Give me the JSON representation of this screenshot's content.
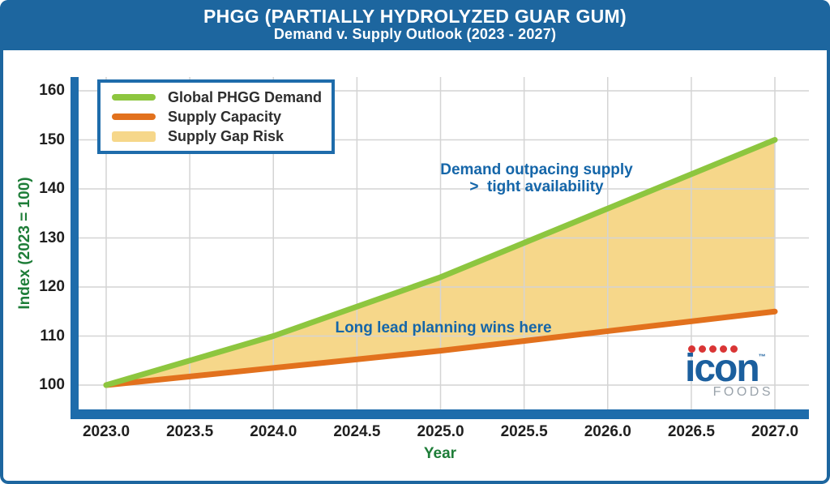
{
  "header": {
    "title": "PHGG (PARTIALLY HYDROLYZED GUAR GUM)",
    "subtitle": "Demand v. Supply Outlook (2023 - 2027)"
  },
  "chart_data": {
    "type": "area",
    "title": "PHGG (PARTIALLY HYDROLYZED GUAR GUM)",
    "subtitle": "Demand v. Supply Outlook (2023 - 2027)",
    "xlabel": "Year",
    "ylabel": "Index (2023 = 100)",
    "x": [
      2023,
      2024,
      2025,
      2026,
      2027
    ],
    "series": [
      {
        "name": "Global PHGG Demand",
        "color": "#8dc63f",
        "values": [
          100,
          110,
          122,
          136,
          150
        ]
      },
      {
        "name": "Supply Capacity",
        "color": "#e2711d",
        "values": [
          100,
          103.5,
          107,
          111,
          115
        ]
      }
    ],
    "gap_fill": {
      "label": "Supply Gap Risk",
      "color": "#f6d78a",
      "between": [
        "Global PHGG Demand",
        "Supply Capacity"
      ]
    },
    "legend": {
      "position": "upper left",
      "entries": [
        "Global PHGG Demand",
        "Supply Capacity",
        "Supply Gap Risk"
      ]
    },
    "x_tick_labels": [
      "2023.0",
      "2023.5",
      "2024.0",
      "2024.5",
      "2025.0",
      "2025.5",
      "2026.0",
      "2026.5",
      "2027.0"
    ],
    "y_tick_labels": [
      "100",
      "110",
      "120",
      "130",
      "140",
      "150",
      "160"
    ],
    "xlim": [
      2023,
      2027
    ],
    "ylim_ticks": [
      100,
      160
    ],
    "grid": true,
    "annotations": [
      {
        "lines": [
          "Demand outpacing supply",
          ">  tight availability"
        ],
        "color": "#1566a9",
        "x": 2025.6,
        "y": 143
      },
      {
        "lines": [
          "Long lead planning wins here"
        ],
        "color": "#1566a9",
        "x": 2025.0,
        "y": 111.5
      }
    ]
  },
  "brand": {
    "word": "icon",
    "tm": "™",
    "name": "FOODS"
  },
  "colors": {
    "banner_blue": "#1d669f",
    "axis_spine_blue": "#1e6cab",
    "annotation_blue": "#1566a9",
    "axis_label_green": "#1e7d38",
    "demand_green": "#8dc63f",
    "supply_orange": "#e2711d",
    "gap_fill_yellow": "#f6d78a",
    "grid_gray": "#d4d4d4",
    "tick_label_dark": "#1f1f1f",
    "logo_blue": "#1b5f9e",
    "logo_dot_red": "#d93535",
    "foods_gray": "#9aa3ab"
  }
}
